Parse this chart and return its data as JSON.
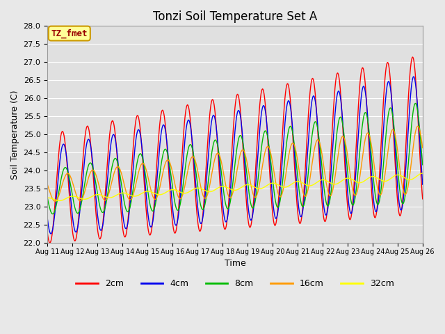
{
  "title": "Tonzi Soil Temperature Set A",
  "xlabel": "Time",
  "ylabel": "Soil Temperature (C)",
  "ylim": [
    22.0,
    28.0
  ],
  "yticks": [
    22.0,
    22.5,
    23.0,
    23.5,
    24.0,
    24.5,
    25.0,
    25.5,
    26.0,
    26.5,
    27.0,
    27.5,
    28.0
  ],
  "x_tick_labels": [
    "Aug 11",
    "Aug 12",
    "Aug 13",
    "Aug 14",
    "Aug 15",
    "Aug 16",
    "Aug 17",
    "Aug 18",
    "Aug 19",
    "Aug 20",
    "Aug 21",
    "Aug 22",
    "Aug 23",
    "Aug 24",
    "Aug 25",
    "Aug 26"
  ],
  "colors": {
    "2cm": "#ff0000",
    "4cm": "#0000ee",
    "8cm": "#00bb00",
    "16cm": "#ff9900",
    "32cm": "#ffff00"
  },
  "legend_labels": [
    "2cm",
    "4cm",
    "8cm",
    "16cm",
    "32cm"
  ],
  "annotation_text": "TZ_fmet",
  "annotation_box_facecolor": "#ffff99",
  "annotation_box_edgecolor": "#cc9900",
  "annotation_text_color": "#990000",
  "fig_facecolor": "#e8e8e8",
  "plot_facecolor": "#e0e0e0",
  "grid_color": "#ffffff",
  "title_fontsize": 12,
  "axis_label_fontsize": 9,
  "tick_fontsize": 8,
  "legend_fontsize": 9
}
